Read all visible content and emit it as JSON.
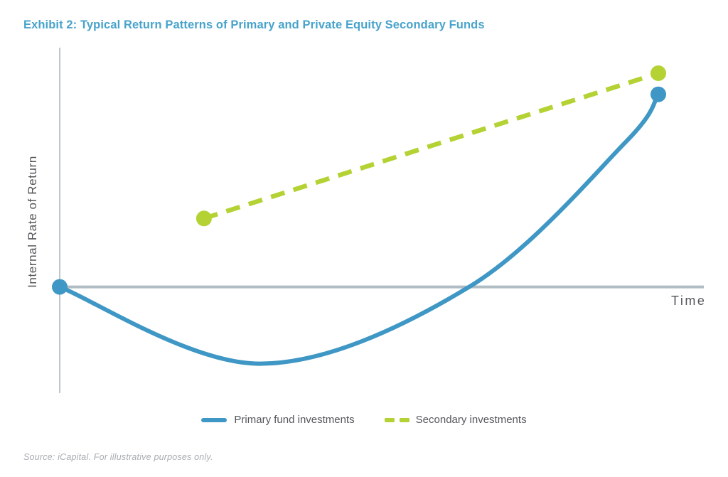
{
  "page": {
    "title": "Exhibit 2: Typical Return Patterns of Primary and Private Equity Secondary Funds",
    "source_note": "Source: iCapital. For illustrative purposes only."
  },
  "colors": {
    "title": "#47a3cb",
    "label_text": "#55565a",
    "legend_text": "#54565b",
    "source_text": "#a7acb1",
    "axis_line": "#bcc7cd",
    "zero_line": "#b0bdc4",
    "primary": "#3e97c4",
    "secondary": "#b4d234"
  },
  "chart_data": {
    "type": "line",
    "title": "Exhibit 2: Typical Return Patterns of Primary and Private Equity Secondary Funds",
    "xlabel": "Time",
    "ylabel": "Internal Rate of Return",
    "units": "illustrative (unitless, no tick labels shown)",
    "x_range": [
      0,
      10.76
    ],
    "y_range": [
      -1.66,
      3.74
    ],
    "zero_line": true,
    "grid": false,
    "legend_position": "bottom-center",
    "series": [
      {
        "name": "Primary fund investments",
        "style": "solid",
        "shape": "smooth J-curve",
        "color": "#3e97c4",
        "stroke_width": 6,
        "markers": "endpoints",
        "points": [
          {
            "x": 0.0,
            "y": 0.0
          },
          {
            "x": 3.34,
            "y": -1.2
          },
          {
            "x": 6.84,
            "y": 0.0
          },
          {
            "x": 9.45,
            "y": 2.26
          },
          {
            "x": 10.0,
            "y": 3.01
          }
        ]
      },
      {
        "name": "Secondary investments",
        "style": "dashed",
        "shape": "straight",
        "color": "#b4d234",
        "stroke_width": 6.5,
        "markers": "endpoints",
        "points": [
          {
            "x": 2.41,
            "y": 1.07
          },
          {
            "x": 10.0,
            "y": 3.34
          }
        ]
      }
    ]
  }
}
